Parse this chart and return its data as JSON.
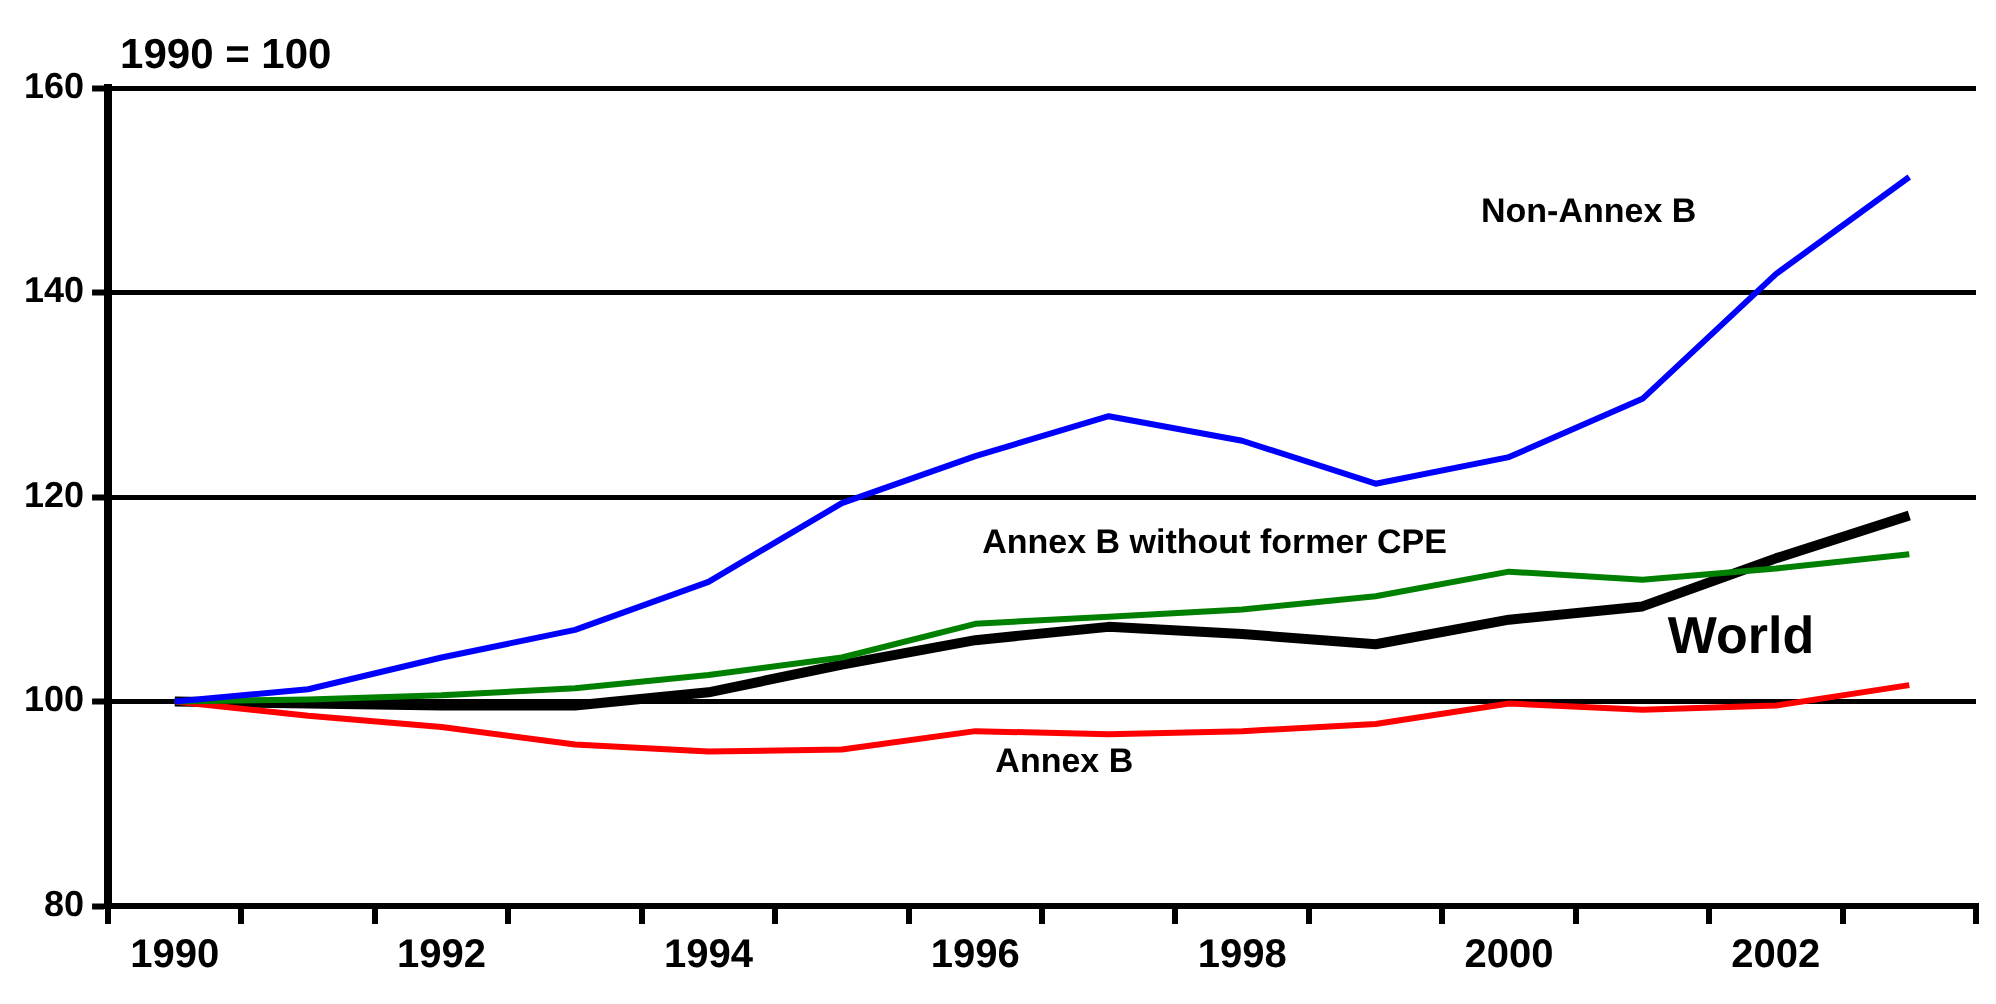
{
  "chart_data": {
    "type": "line",
    "ylabel": "1990 = 100",
    "categories": [
      "1990",
      null,
      "1992",
      null,
      "1994",
      null,
      "1996",
      null,
      "1998",
      null,
      "2000",
      null,
      "2002",
      null
    ],
    "series": [
      {
        "name": "Non-Annex B",
        "color": "#0000ff",
        "values": [
          100,
          101.2,
          104.3,
          107,
          111.7,
          119.4,
          124,
          127.9,
          125.5,
          121.3,
          123.9,
          129.6,
          141.8,
          151.3
        ]
      },
      {
        "name": "Annex B without former CPE",
        "color": "#008000",
        "values": [
          100,
          100.2,
          100.6,
          101.3,
          102.6,
          104.3,
          107.6,
          108.3,
          109,
          110.3,
          112.7,
          111.9,
          113,
          114.4
        ]
      },
      {
        "name": "Annex B",
        "color": "#ff0000",
        "values": [
          100,
          98.6,
          97.5,
          95.8,
          95.1,
          95.3,
          97.1,
          96.8,
          97.1,
          97.8,
          99.8,
          99.2,
          99.6,
          101.6
        ]
      },
      {
        "name": "World",
        "color": "#000000",
        "values": [
          100,
          99.8,
          99.6,
          99.6,
          100.9,
          103.6,
          106,
          107.3,
          106.6,
          105.6,
          108,
          109.3,
          114,
          118.2
        ]
      }
    ],
    "ylim": [
      80,
      160
    ],
    "yticks": [
      80,
      100,
      120,
      140,
      160
    ],
    "grid": "y",
    "legend": false,
    "marker": "none",
    "line_style": "solid"
  }
}
